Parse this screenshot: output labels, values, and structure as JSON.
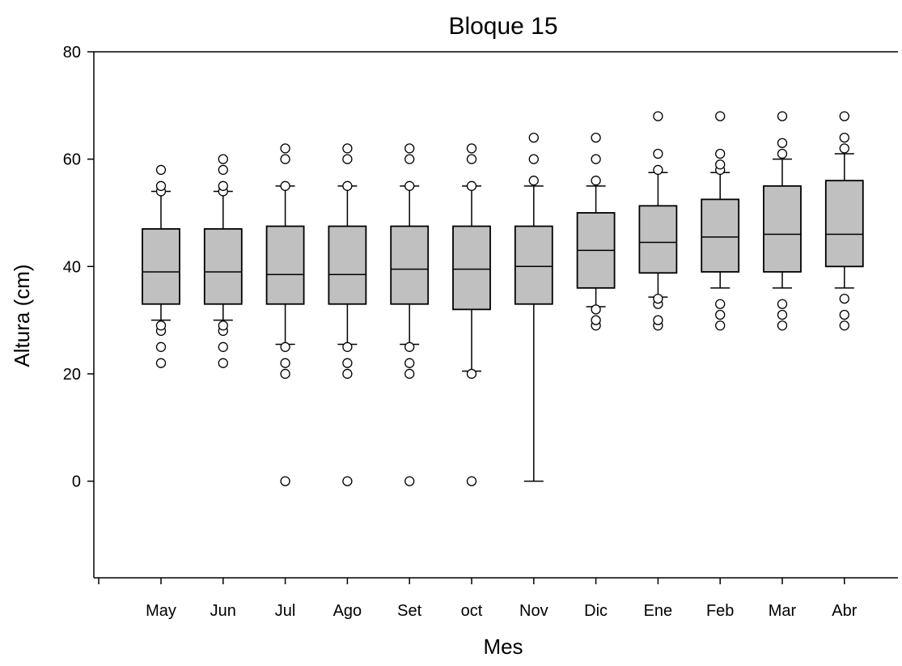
{
  "chart_data": {
    "type": "box",
    "title": "Bloque 15",
    "xlabel": "Mes",
    "ylabel": "Altura (cm)",
    "ylim": [
      -18,
      80
    ],
    "yticks": [
      0,
      20,
      40,
      60,
      80
    ],
    "grid": false,
    "box_color": "#c0c0c0",
    "categories": [
      "May",
      "Jun",
      "Jul",
      "Ago",
      "Set",
      "oct",
      "Nov",
      "Dic",
      "Ene",
      "Feb",
      "Mar",
      "Abr"
    ],
    "boxes": [
      {
        "q1": 33,
        "median": 39,
        "q3": 47,
        "whisker_low": 30,
        "whisker_high": 54,
        "outliers": [
          22,
          25,
          28,
          29,
          54,
          55,
          58
        ]
      },
      {
        "q1": 33,
        "median": 39,
        "q3": 47,
        "whisker_low": 30,
        "whisker_high": 54,
        "outliers": [
          22,
          25,
          28,
          29,
          54,
          55,
          58,
          60
        ]
      },
      {
        "q1": 33,
        "median": 38.5,
        "q3": 47.5,
        "whisker_low": 25.5,
        "whisker_high": 55,
        "outliers": [
          0,
          20,
          22,
          25,
          55,
          60,
          62
        ]
      },
      {
        "q1": 33,
        "median": 38.5,
        "q3": 47.5,
        "whisker_low": 25.5,
        "whisker_high": 55,
        "outliers": [
          0,
          20,
          22,
          25,
          55,
          60,
          62
        ]
      },
      {
        "q1": 33,
        "median": 39.5,
        "q3": 47.5,
        "whisker_low": 25.5,
        "whisker_high": 55,
        "outliers": [
          0,
          20,
          22,
          25,
          55,
          60,
          62
        ]
      },
      {
        "q1": 32,
        "median": 39.5,
        "q3": 47.5,
        "whisker_low": 20.5,
        "whisker_high": 55,
        "outliers": [
          0,
          20,
          55,
          60,
          62
        ]
      },
      {
        "q1": 33,
        "median": 40,
        "q3": 47.5,
        "whisker_low": 0,
        "whisker_high": 55,
        "outliers": [
          56,
          60,
          64
        ]
      },
      {
        "q1": 36,
        "median": 43,
        "q3": 50,
        "whisker_low": 32.5,
        "whisker_high": 55,
        "outliers": [
          29,
          30,
          32,
          56,
          60,
          64
        ]
      },
      {
        "q1": 38.8,
        "median": 44.5,
        "q3": 51.3,
        "whisker_low": 34.3,
        "whisker_high": 57.5,
        "outliers": [
          29,
          30,
          33,
          34,
          58,
          61,
          68
        ]
      },
      {
        "q1": 39,
        "median": 45.5,
        "q3": 52.5,
        "whisker_low": 36,
        "whisker_high": 57.5,
        "outliers": [
          29,
          31,
          33,
          58,
          59,
          61,
          68
        ]
      },
      {
        "q1": 39,
        "median": 46,
        "q3": 55,
        "whisker_low": 36,
        "whisker_high": 60,
        "outliers": [
          29,
          31,
          33,
          61,
          63,
          68
        ]
      },
      {
        "q1": 40,
        "median": 46,
        "q3": 56,
        "whisker_low": 36,
        "whisker_high": 61,
        "outliers": [
          29,
          31,
          34,
          62,
          64,
          68
        ]
      }
    ]
  }
}
